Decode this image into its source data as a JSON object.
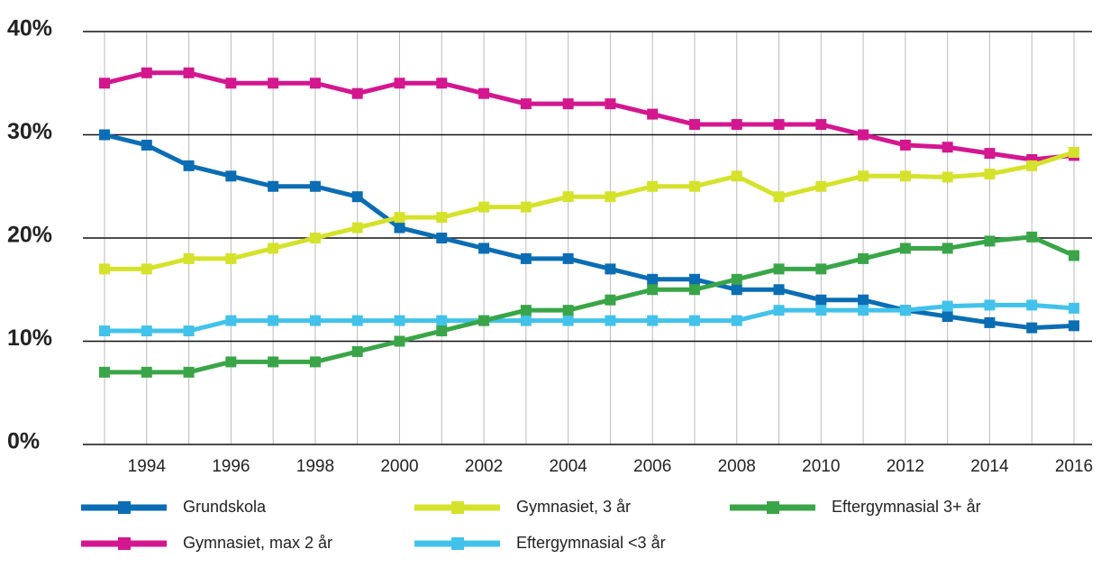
{
  "chart_data": {
    "type": "line",
    "x": [
      1993,
      1994,
      1995,
      1996,
      1997,
      1998,
      1999,
      2000,
      2001,
      2002,
      2003,
      2004,
      2005,
      2006,
      2007,
      2008,
      2009,
      2010,
      2011,
      2012,
      2013,
      2014,
      2015,
      2016
    ],
    "xlim": [
      1993,
      2016
    ],
    "xticks": [
      1994,
      1996,
      1998,
      2000,
      2002,
      2004,
      2006,
      2008,
      2010,
      2012,
      2014,
      2016
    ],
    "ylim": [
      0,
      40
    ],
    "yticks": [
      {
        "value": 0,
        "label": "0%"
      },
      {
        "value": 10,
        "label": "10%"
      },
      {
        "value": 20,
        "label": "20%"
      },
      {
        "value": 30,
        "label": "30%"
      },
      {
        "value": 40,
        "label": "40%"
      }
    ],
    "grid": true,
    "series": [
      {
        "name": "Grundskola",
        "color": "#0b6db3",
        "values": [
          30,
          29,
          27,
          26,
          25,
          25,
          24,
          21,
          20,
          19,
          18,
          18,
          17,
          16,
          16,
          15,
          15,
          14,
          14,
          13,
          12.4,
          11.8,
          11.3,
          11.5
        ]
      },
      {
        "name": "Gymnasiet, max 2 år",
        "color": "#d4168f",
        "values": [
          35,
          36,
          36,
          35,
          35,
          35,
          34,
          35,
          35,
          34,
          33,
          33,
          33,
          32,
          31,
          31,
          31,
          31,
          30,
          29,
          28.8,
          28.2,
          27.6,
          28
        ]
      },
      {
        "name": "Gymnasiet, 3 år",
        "color": "#d5e22b",
        "values": [
          17,
          17,
          18,
          18,
          19,
          20,
          21,
          22,
          22,
          23,
          23,
          24,
          24,
          25,
          25,
          26,
          24,
          25,
          26,
          26,
          25.9,
          26.2,
          27,
          28.3
        ]
      },
      {
        "name": "Eftergymnasial <3 år",
        "color": "#42c2ea",
        "values": [
          11,
          11,
          11,
          12,
          12,
          12,
          12,
          12,
          12,
          12,
          12,
          12,
          12,
          12,
          12,
          12,
          13,
          13,
          13,
          13,
          13.4,
          13.5,
          13.5,
          13.2
        ]
      },
      {
        "name": "Eftergymnasial 3+ år",
        "color": "#3aa548",
        "values": [
          7,
          7,
          7,
          8,
          8,
          8,
          9,
          10,
          11,
          12,
          13,
          13,
          14,
          15,
          15,
          16,
          17,
          17,
          18,
          19,
          19,
          19.7,
          20.1,
          18.3
        ]
      }
    ]
  }
}
